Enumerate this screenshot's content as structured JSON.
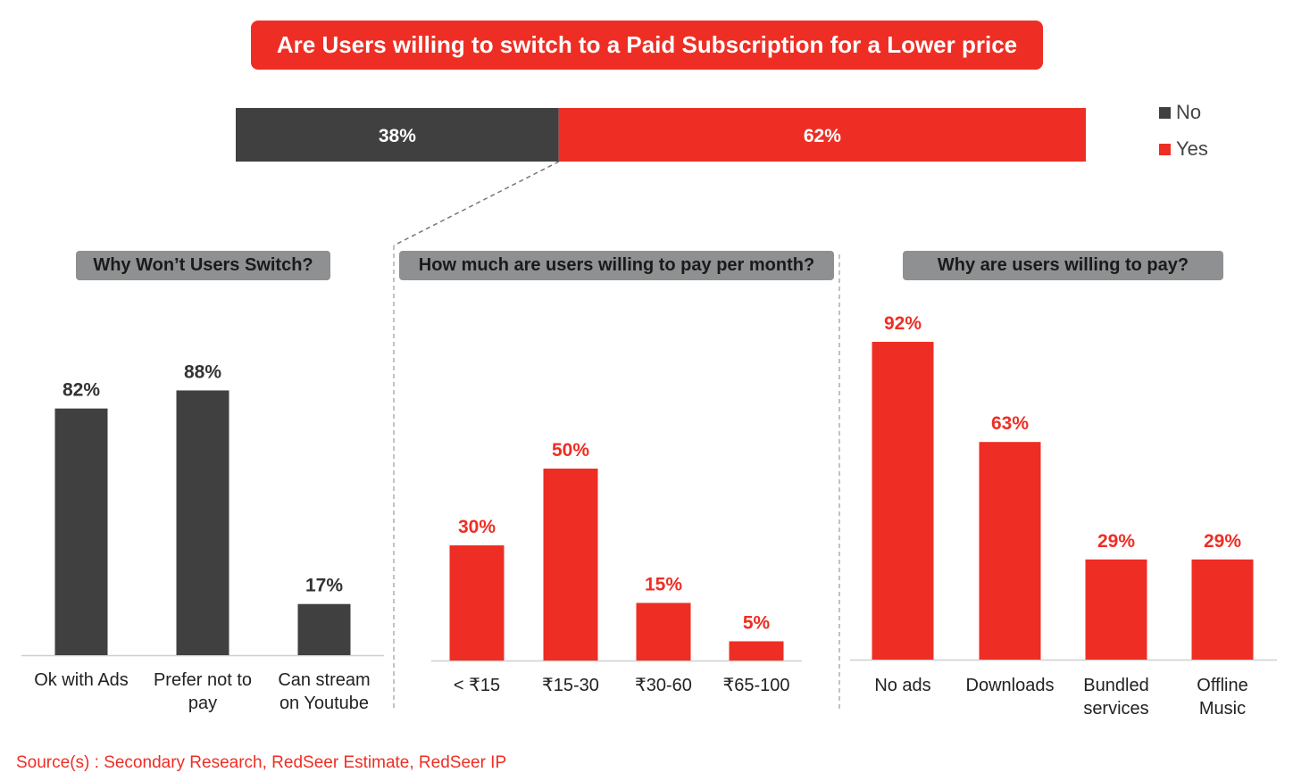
{
  "title": "Are Users willing to switch to a Paid Subscription for a Lower price",
  "source": "Source(s) : Secondary Research, RedSeer Estimate, RedSeer IP",
  "colors": {
    "red": "#ee2e24",
    "dark": "#404040",
    "pill_gray": "#8e9092"
  },
  "legend": [
    {
      "label": "No",
      "color": "#404040"
    },
    {
      "label": "Yes",
      "color": "#ee2e24"
    }
  ],
  "chart_data": [
    {
      "type": "bar",
      "orientation": "horizontal-stacked",
      "title": "Are Users willing to switch to a Paid Subscription for a Lower price",
      "series": [
        {
          "name": "No",
          "values": [
            38
          ],
          "labels": [
            "38%"
          ],
          "color": "#404040"
        },
        {
          "name": "Yes",
          "values": [
            62
          ],
          "labels": [
            "62%"
          ],
          "color": "#ee2e24"
        }
      ]
    },
    {
      "type": "bar",
      "title": "Why Won’t Users Switch?",
      "categories": [
        "Ok with Ads",
        "Prefer not to\npay",
        "Can stream\non Youtube"
      ],
      "values": [
        82,
        88,
        17
      ],
      "labels": [
        "82%",
        "88%",
        "17%"
      ],
      "color": "#404040",
      "ylim": [
        0,
        100
      ]
    },
    {
      "type": "bar",
      "title": "How much are users willing to pay per month?",
      "categories": [
        "< ₹15",
        "₹15-30",
        "₹30-60",
        "₹65-100"
      ],
      "values": [
        30,
        50,
        15,
        5
      ],
      "labels": [
        "30%",
        "50%",
        "15%",
        "5%"
      ],
      "color": "#ee2e24",
      "ylim": [
        0,
        100
      ]
    },
    {
      "type": "bar",
      "title": "Why are users willing to pay?",
      "categories": [
        "No ads",
        "Downloads",
        "Bundled\nservices",
        "Offline\nMusic"
      ],
      "values": [
        92,
        63,
        29,
        29
      ],
      "labels": [
        "92%",
        "63%",
        "29%",
        "29%"
      ],
      "color": "#ee2e24",
      "ylim": [
        0,
        100
      ]
    }
  ]
}
